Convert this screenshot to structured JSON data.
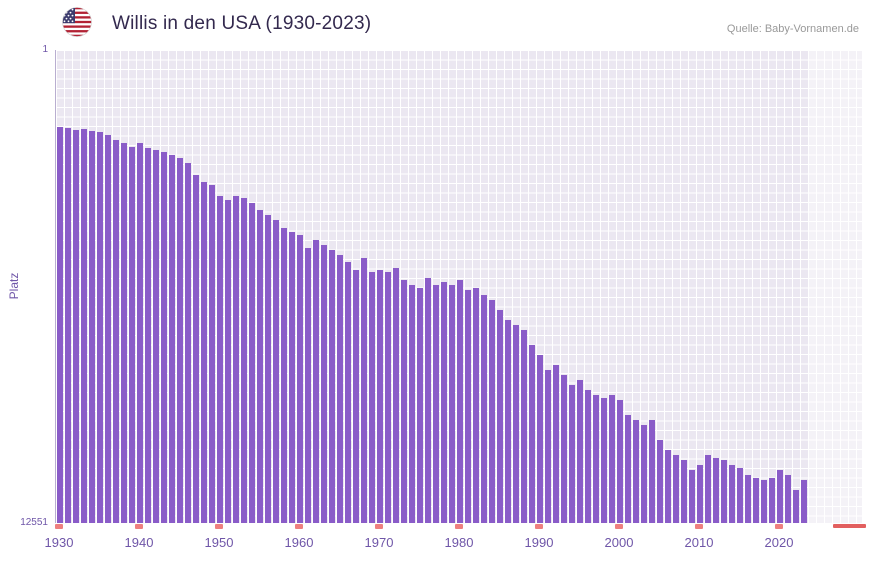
{
  "header": {
    "title": "Willis in den USA (1930-2023)",
    "source": "Quelle: Baby-Vornamen.de"
  },
  "axis": {
    "y_label": "Platz",
    "y_top_tick": "1",
    "y_bottom_tick": "12551",
    "x_tick_labels": [
      "1930",
      "1940",
      "1950",
      "1960",
      "1970",
      "1980",
      "1990",
      "2000",
      "2010",
      "2020"
    ]
  },
  "colors": {
    "bar": "#8a5cc8",
    "plot_background": "#ebe7f1",
    "grid": "#ffffff",
    "tick_text": "#6f56a8",
    "title_text": "#33294e",
    "source_text": "#999999",
    "marker": "#ee7f7f",
    "marker_strong": "#e25f5f",
    "future_overlay": "rgba(255,255,255,0.45)",
    "axis_line": "#b9aed0"
  },
  "chart_data": {
    "type": "bar",
    "title": "Willis in den USA (1930-2023)",
    "xlabel": "",
    "ylabel": "Platz",
    "y_axis_inverted": true,
    "ylim": [
      1,
      12551
    ],
    "grid": true,
    "legend": null,
    "x": [
      1930,
      1931,
      1932,
      1933,
      1934,
      1935,
      1936,
      1937,
      1938,
      1939,
      1940,
      1941,
      1942,
      1943,
      1944,
      1945,
      1946,
      1947,
      1948,
      1949,
      1950,
      1951,
      1952,
      1953,
      1954,
      1955,
      1956,
      1957,
      1958,
      1959,
      1960,
      1961,
      1962,
      1963,
      1964,
      1965,
      1966,
      1967,
      1968,
      1969,
      1970,
      1971,
      1972,
      1973,
      1974,
      1975,
      1976,
      1977,
      1978,
      1979,
      1980,
      1981,
      1982,
      1983,
      1984,
      1985,
      1986,
      1987,
      1988,
      1989,
      1990,
      1991,
      1992,
      1993,
      1994,
      1995,
      1996,
      1997,
      1998,
      1999,
      2000,
      2001,
      2002,
      2003,
      2004,
      2005,
      2006,
      2007,
      2008,
      2009,
      2010,
      2011,
      2012,
      2013,
      2014,
      2015,
      2016,
      2017,
      2018,
      2019,
      2020,
      2021,
      2022,
      2023
    ],
    "values": [
      2044,
      2071,
      2124,
      2097,
      2150,
      2177,
      2256,
      2389,
      2468,
      2575,
      2468,
      2601,
      2654,
      2707,
      2787,
      2866,
      2999,
      3318,
      3503,
      3583,
      3875,
      3981,
      3875,
      3928,
      4061,
      4247,
      4379,
      4512,
      4724,
      4830,
      4909,
      5254,
      5042,
      5175,
      5307,
      5440,
      5626,
      5838,
      5520,
      5891,
      5838,
      5891,
      5785,
      6103,
      6236,
      6316,
      6050,
      6236,
      6156,
      6236,
      6103,
      6369,
      6316,
      6501,
      6634,
      6899,
      7164,
      7297,
      7430,
      7828,
      8093,
      8491,
      8359,
      8624,
      8889,
      8757,
      9022,
      9155,
      9234,
      9155,
      9287,
      9686,
      9818,
      9951,
      9818,
      10349,
      10614,
      10747,
      10879,
      11145,
      11012,
      10747,
      10826,
      10879,
      11012,
      11092,
      11277,
      11357,
      11410,
      11357,
      11145,
      11277,
      11675,
      11410
    ]
  }
}
